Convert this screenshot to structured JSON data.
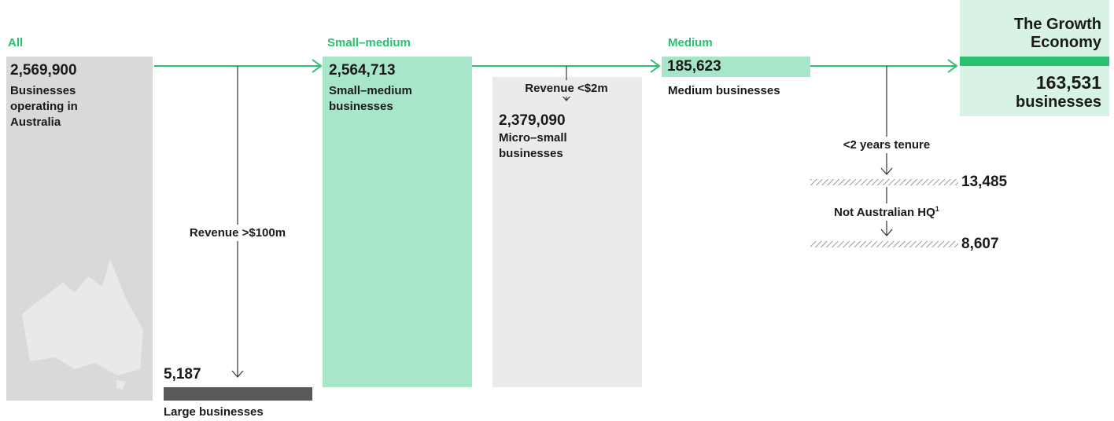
{
  "stages": [
    {
      "label": "All",
      "value": "2,569,900",
      "description": "Businesses operating in Australia"
    },
    {
      "label": "Small–medium",
      "value": "2,564,713",
      "description": "Small–medium businesses"
    },
    {
      "label": "Medium",
      "value": "185,623",
      "description": "Medium businesses"
    },
    {
      "label": "The Growth Economy",
      "value": "163,531",
      "description": "businesses"
    }
  ],
  "filters": [
    {
      "label": "Revenue >$100m",
      "value": "5,187",
      "description": "Large businesses"
    },
    {
      "label": "Revenue <$2m",
      "value": "2,379,090",
      "description": "Micro–small businesses"
    },
    {
      "label": "<2 years tenure",
      "value": "13,485"
    },
    {
      "label": "Not Australian HQ",
      "footnote": "1",
      "value": "8,607"
    }
  ]
}
